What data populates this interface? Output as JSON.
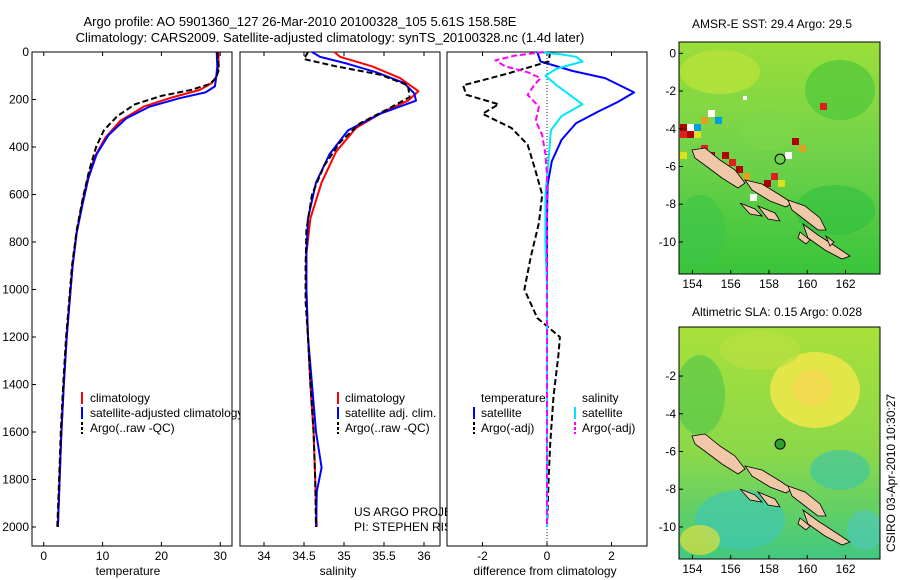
{
  "header": {
    "line1": "Argo profile: AO 5901360_127 26-Mar-2010 20100328_105 5.61S 158.58E",
    "line2": "Climatology: CARS2009. Satellite-adjusted climatology: synTS_20100328.nc (1.4d later)"
  },
  "credits": {
    "project": "US ARGO PROJECT",
    "pi": "PI: STEPHEN RISER",
    "stamp": "CSIRO 03-Apr-2010 10:30:27"
  },
  "colors": {
    "climatology": "#ff0000",
    "satellite": "#0000ff",
    "argo": "#000000",
    "sal_satellite": "#00e5ff",
    "sal_argo": "#ff00ff",
    "zero_line": "#000000"
  },
  "chart_data": [
    {
      "type": "line",
      "id": "temperature",
      "title": "",
      "xlabel": "temperature",
      "ylabel": "",
      "xlim": [
        -2,
        32
      ],
      "ylim": [
        2080,
        0
      ],
      "y_reversed": true,
      "xticks": [
        0,
        10,
        20,
        30
      ],
      "yticks": [
        0,
        200,
        400,
        600,
        800,
        1000,
        1200,
        1400,
        1600,
        1800,
        2000
      ],
      "legend": [
        "climatology",
        "satellite-adjusted climatology",
        "Argo(..raw -QC)"
      ],
      "legend_placement": "lower-center",
      "series": [
        {
          "name": "climatology",
          "color_key": "climatology",
          "dash": false,
          "points": [
            [
              29.7,
              0
            ],
            [
              29.7,
              60
            ],
            [
              29.4,
              100
            ],
            [
              28.6,
              130
            ],
            [
              26.5,
              160
            ],
            [
              22,
              190
            ],
            [
              17,
              230
            ],
            [
              13,
              290
            ],
            [
              10.5,
              360
            ],
            [
              8.7,
              440
            ],
            [
              7.5,
              530
            ],
            [
              6.5,
              640
            ],
            [
              5.6,
              760
            ],
            [
              4.9,
              900
            ],
            [
              4.4,
              1050
            ],
            [
              3.9,
              1200
            ],
            [
              3.4,
              1400
            ],
            [
              3.0,
              1600
            ],
            [
              2.7,
              1800
            ],
            [
              2.4,
              2000
            ]
          ]
        },
        {
          "name": "satellite-adjusted climatology",
          "color_key": "satellite",
          "dash": false,
          "points": [
            [
              29.4,
              0
            ],
            [
              29.5,
              60
            ],
            [
              29.3,
              110
            ],
            [
              29.1,
              145
            ],
            [
              27.5,
              170
            ],
            [
              23,
              195
            ],
            [
              18,
              230
            ],
            [
              14,
              280
            ],
            [
              11,
              350
            ],
            [
              9,
              430
            ],
            [
              7.6,
              530
            ],
            [
              6.6,
              640
            ],
            [
              5.6,
              760
            ],
            [
              4.9,
              900
            ],
            [
              4.4,
              1050
            ],
            [
              3.9,
              1200
            ],
            [
              3.4,
              1400
            ],
            [
              3.0,
              1600
            ],
            [
              2.7,
              1800
            ],
            [
              2.4,
              2000
            ]
          ]
        },
        {
          "name": "Argo(..raw -QC)",
          "color_key": "argo",
          "dash": true,
          "points": [
            [
              29.5,
              0
            ],
            [
              29.8,
              70
            ],
            [
              29.3,
              110
            ],
            [
              28.2,
              135
            ],
            [
              25,
              160
            ],
            [
              20,
              185
            ],
            [
              15.5,
              220
            ],
            [
              12.5,
              270
            ],
            [
              10.2,
              330
            ],
            [
              8.9,
              400
            ],
            [
              7.7,
              500
            ],
            [
              6.6,
              620
            ],
            [
              5.6,
              750
            ],
            [
              4.8,
              900
            ],
            [
              4.3,
              1050
            ],
            [
              3.8,
              1200
            ],
            [
              3.3,
              1400
            ],
            [
              2.9,
              1600
            ],
            [
              2.6,
              1800
            ],
            [
              2.3,
              2000
            ]
          ]
        }
      ]
    },
    {
      "type": "line",
      "id": "salinity",
      "title": "",
      "xlabel": "salinity",
      "ylabel": "",
      "xlim": [
        33.7,
        36.2
      ],
      "ylim": [
        2080,
        0
      ],
      "y_reversed": true,
      "xticks": [
        34,
        34.5,
        35,
        35.5,
        36
      ],
      "legend": [
        "climatology",
        "satellite adj. clim.",
        "Argo(..raw -QC)"
      ],
      "legend_placement": "lower-right",
      "series": [
        {
          "name": "climatology",
          "color_key": "climatology",
          "dash": false,
          "points": [
            [
              34.88,
              0
            ],
            [
              34.95,
              20
            ],
            [
              35.35,
              60
            ],
            [
              35.7,
              110
            ],
            [
              35.93,
              165
            ],
            [
              35.8,
              205
            ],
            [
              35.5,
              250
            ],
            [
              35.15,
              320
            ],
            [
              34.9,
              420
            ],
            [
              34.72,
              550
            ],
            [
              34.58,
              700
            ],
            [
              34.53,
              850
            ],
            [
              34.53,
              1000
            ],
            [
              34.55,
              1200
            ],
            [
              34.58,
              1400
            ],
            [
              34.62,
              1600
            ],
            [
              34.64,
              1800
            ],
            [
              34.66,
              2000
            ]
          ]
        },
        {
          "name": "satellite adj. clim.",
          "color_key": "satellite",
          "dash": false,
          "points": [
            [
              34.6,
              0
            ],
            [
              34.7,
              20
            ],
            [
              35.05,
              50
            ],
            [
              35.4,
              85
            ],
            [
              35.75,
              130
            ],
            [
              35.88,
              175
            ],
            [
              35.9,
              205
            ],
            [
              35.45,
              260
            ],
            [
              35.05,
              330
            ],
            [
              34.82,
              430
            ],
            [
              34.65,
              550
            ],
            [
              34.55,
              700
            ],
            [
              34.53,
              850
            ],
            [
              34.53,
              1000
            ],
            [
              34.55,
              1200
            ],
            [
              34.6,
              1400
            ],
            [
              34.65,
              1600
            ],
            [
              34.72,
              1750
            ],
            [
              34.66,
              1850
            ],
            [
              34.65,
              2000
            ]
          ]
        },
        {
          "name": "Argo(..raw -QC)",
          "color_key": "argo",
          "dash": true,
          "points": [
            [
              34.55,
              0
            ],
            [
              34.5,
              30
            ],
            [
              34.9,
              60
            ],
            [
              35.45,
              95
            ],
            [
              35.8,
              140
            ],
            [
              35.82,
              190
            ],
            [
              35.55,
              240
            ],
            [
              35.2,
              300
            ],
            [
              34.95,
              380
            ],
            [
              34.75,
              480
            ],
            [
              34.6,
              600
            ],
            [
              34.53,
              750
            ],
            [
              34.52,
              900
            ],
            [
              34.52,
              1050
            ],
            [
              34.55,
              1200
            ],
            [
              34.58,
              1400
            ],
            [
              34.62,
              1600
            ],
            [
              34.64,
              1800
            ],
            [
              34.65,
              2000
            ]
          ]
        }
      ]
    },
    {
      "type": "line",
      "id": "difference",
      "title": "",
      "xlabel": "difference from climatology",
      "ylabel": "",
      "xlim": [
        -3.1,
        3.1
      ],
      "ylim": [
        2080,
        0
      ],
      "y_reversed": true,
      "xticks": [
        -2,
        0,
        2
      ],
      "legend": [
        "temperature",
        "satellite",
        "Argo(-adj)",
        "salinity",
        "satellite",
        "Argo(-adj)"
      ],
      "legend_placement": "lower-center",
      "series": [
        {
          "name": "satellite",
          "group": "temperature",
          "color_key": "satellite",
          "dash": false,
          "points": [
            [
              -0.3,
              0
            ],
            [
              -0.2,
              40
            ],
            [
              0.8,
              80
            ],
            [
              1.8,
              110
            ],
            [
              2.7,
              170
            ],
            [
              2.2,
              210
            ],
            [
              1.6,
              250
            ],
            [
              0.9,
              300
            ],
            [
              0.45,
              370
            ],
            [
              0.15,
              460
            ],
            [
              0.02,
              560
            ],
            [
              0,
              700
            ],
            [
              0,
              900
            ],
            [
              0,
              1100
            ],
            [
              0,
              1300
            ],
            [
              0,
              1500
            ],
            [
              0,
              1700
            ],
            [
              0,
              2000
            ]
          ]
        },
        {
          "name": "Argo(-adj)",
          "group": "temperature",
          "color_key": "argo",
          "dash": true,
          "points": [
            [
              0.1,
              0
            ],
            [
              0.05,
              40
            ],
            [
              -1.2,
              90
            ],
            [
              -2.6,
              140
            ],
            [
              -2.5,
              180
            ],
            [
              -1.5,
              220
            ],
            [
              -2.0,
              260
            ],
            [
              -1.1,
              320
            ],
            [
              -0.6,
              390
            ],
            [
              -0.4,
              480
            ],
            [
              -0.15,
              600
            ],
            [
              -0.25,
              720
            ],
            [
              -0.5,
              860
            ],
            [
              -0.7,
              1000
            ],
            [
              -0.3,
              1120
            ],
            [
              0.4,
              1200
            ],
            [
              0.35,
              1280
            ],
            [
              0.2,
              1450
            ],
            [
              0.1,
              1650
            ],
            [
              0.05,
              1800
            ],
            [
              0,
              2000
            ]
          ]
        },
        {
          "name": "satellite",
          "group": "salinity",
          "color_key": "sal_satellite",
          "dash": false,
          "points": [
            [
              -0.3,
              0
            ],
            [
              0.45,
              10
            ],
            [
              0.9,
              20
            ],
            [
              1.1,
              40
            ],
            [
              0.3,
              70
            ],
            [
              -0.05,
              100
            ],
            [
              0.3,
              140
            ],
            [
              0.7,
              180
            ],
            [
              1.1,
              220
            ],
            [
              0.45,
              270
            ],
            [
              0.12,
              330
            ],
            [
              0.05,
              450
            ],
            [
              -0.05,
              600
            ],
            [
              -0.05,
              800
            ],
            [
              0,
              1000
            ],
            [
              0,
              1400
            ],
            [
              0,
              1700
            ],
            [
              0,
              2000
            ]
          ]
        },
        {
          "name": "Argo(-adj)",
          "group": "salinity",
          "color_key": "sal_argo",
          "dash": true,
          "points": [
            [
              -0.1,
              0
            ],
            [
              -1.0,
              15
            ],
            [
              -1.6,
              35
            ],
            [
              -1.3,
              60
            ],
            [
              -0.6,
              85
            ],
            [
              -0.2,
              110
            ],
            [
              -0.4,
              140
            ],
            [
              -0.6,
              180
            ],
            [
              -0.25,
              230
            ],
            [
              -0.35,
              290
            ],
            [
              -0.15,
              350
            ],
            [
              -0.05,
              430
            ],
            [
              0,
              520
            ],
            [
              0,
              700
            ],
            [
              0,
              1000
            ],
            [
              0,
              1400
            ],
            [
              0,
              2000
            ]
          ]
        }
      ]
    }
  ],
  "maps": [
    {
      "id": "sst_map",
      "title": "AMSR-E SST: 29.4 Argo: 29.5",
      "xticks": [
        154,
        156,
        158,
        160,
        162
      ],
      "yticks": [
        0,
        -2,
        -4,
        -6,
        -8,
        -10
      ],
      "xlim": [
        153.3,
        163.8
      ],
      "ylim": [
        -11.7,
        0.6
      ],
      "argo_position": {
        "lon": 158.58,
        "lat": -5.61
      }
    },
    {
      "id": "sla_map",
      "title": "Altimetric SLA: 0.15 Argo: 0.028",
      "xticks": [
        154,
        156,
        158,
        160,
        162
      ],
      "yticks": [
        -2,
        -4,
        -6,
        -8,
        -10
      ],
      "xlim": [
        153.3,
        163.8
      ],
      "ylim": [
        -11.7,
        0.6
      ],
      "argo_position": {
        "lon": 158.58,
        "lat": -5.61
      }
    }
  ]
}
